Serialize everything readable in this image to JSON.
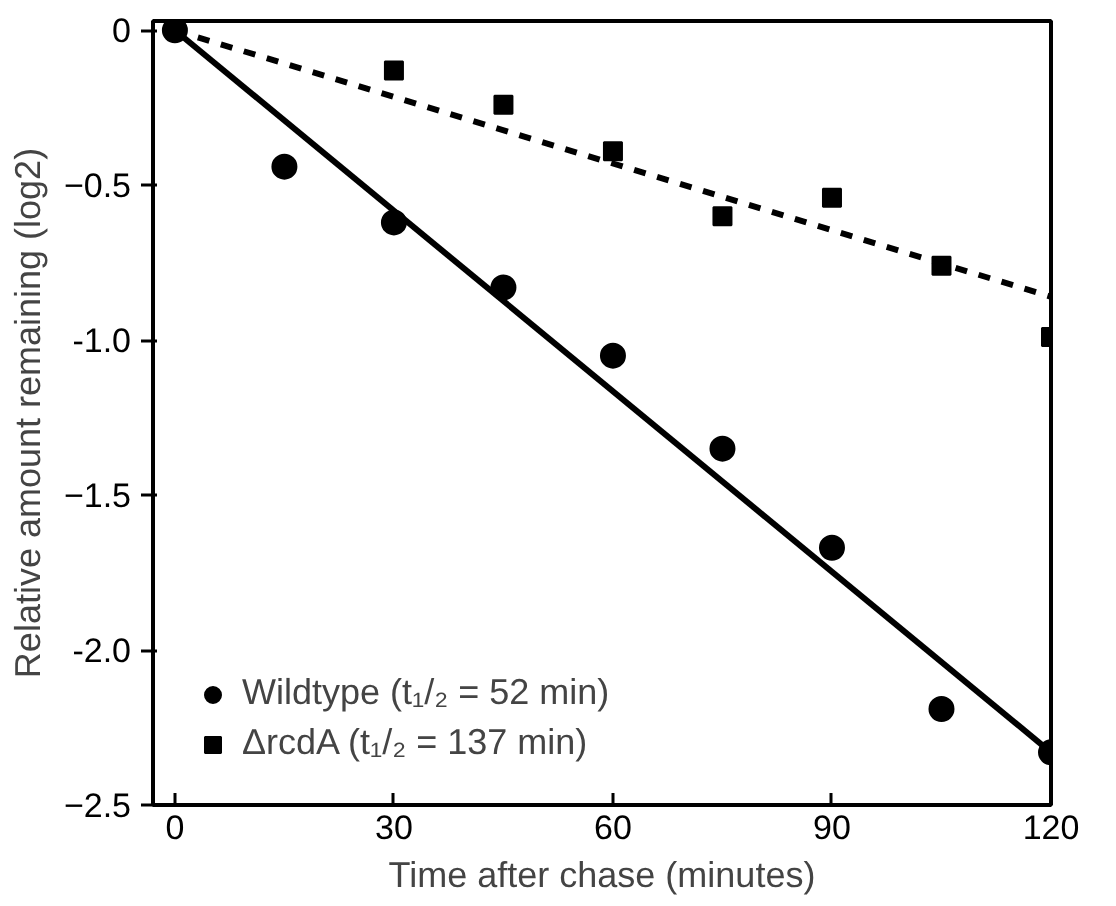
{
  "chart_data": {
    "type": "scatter",
    "xlabel": "Time after chase (minutes)",
    "ylabel": "Relative amount remaining (log2)",
    "xlim": [
      -3,
      120
    ],
    "ylim": [
      -2.5,
      0.03
    ],
    "xticks": [
      0,
      30,
      60,
      90,
      120
    ],
    "yticks": [
      0,
      -0.5,
      {
        "value": -1.0,
        "label": "-1.0"
      },
      -1.5,
      {
        "value": -2.0,
        "label": "-2.0"
      },
      -2.5
    ],
    "grid": false,
    "legend": "bottom left",
    "series": [
      {
        "name": "Wildtype (t₁/₂ = 52 min)",
        "marker": "circle",
        "color": "#000000",
        "x": [
          0,
          15,
          30,
          45,
          60,
          75,
          90,
          105,
          120
        ],
        "values": [
          0,
          -0.44,
          -0.62,
          -0.83,
          -1.05,
          -1.35,
          -1.67,
          -2.19,
          -2.33
        ]
      },
      {
        "name": "ΔrcdA (t₁/₂ = 137 min)",
        "marker": "square",
        "color": "#000000",
        "x": [
          30,
          45,
          60,
          75,
          90,
          105,
          120
        ],
        "values": [
          -0.13,
          -0.24,
          -0.39,
          -0.6,
          -0.54,
          -0.76,
          -0.99
        ]
      },
      {
        "type": "line",
        "line_style": "solid",
        "color": "#000000",
        "x": [
          0,
          120
        ],
        "values": [
          0,
          -2.33
        ]
      },
      {
        "type": "line",
        "line_style": "dashed",
        "color": "#000000",
        "x": [
          0,
          120
        ],
        "values": [
          0,
          -0.86
        ]
      }
    ]
  }
}
